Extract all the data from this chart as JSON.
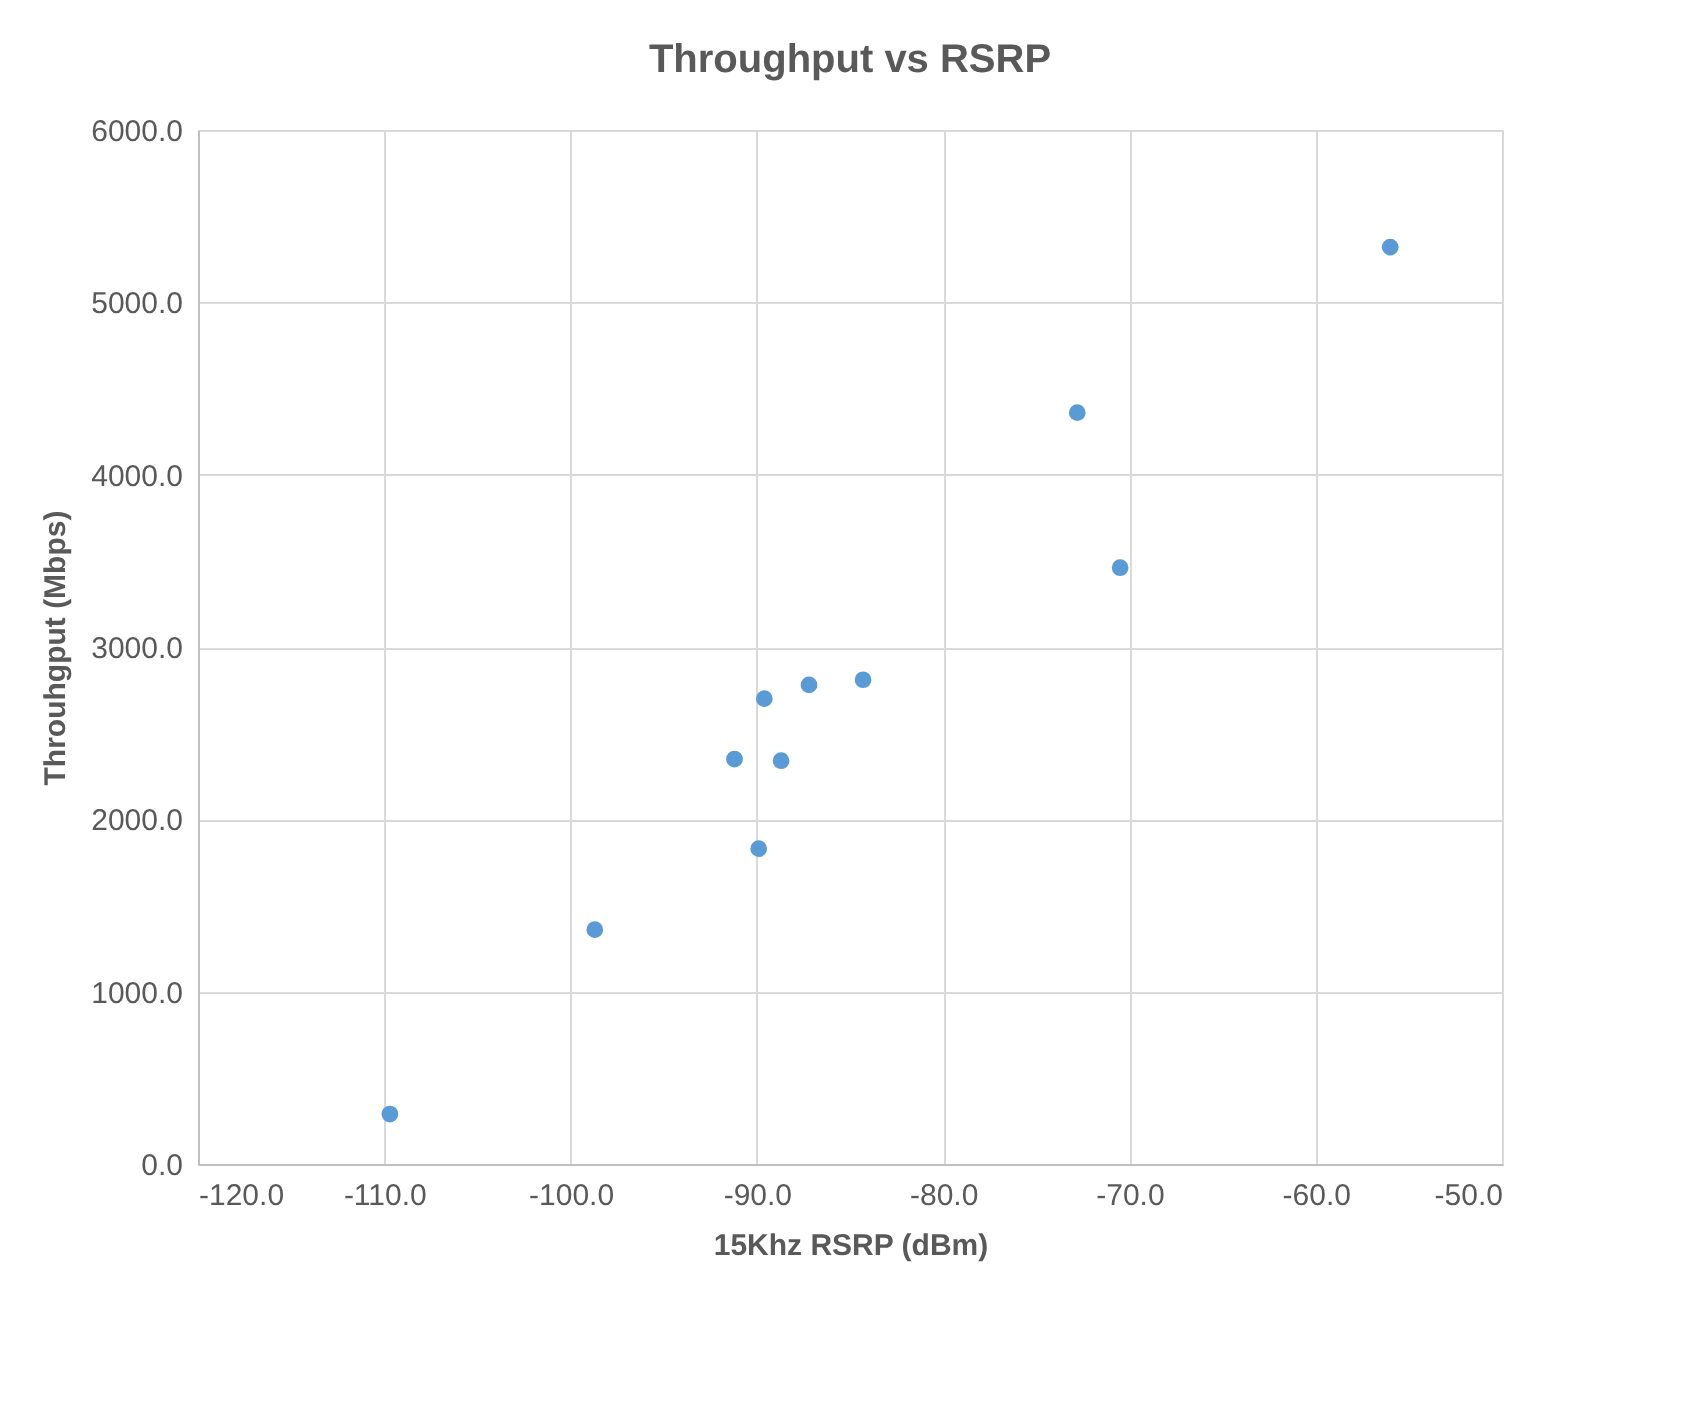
{
  "chart_data": {
    "type": "scatter",
    "title": "Throughput vs RSRP",
    "xlabel": "15Khz RSRP (dBm)",
    "ylabel": "Throuhgput (Mbps)",
    "x": [
      -109.7,
      -98.7,
      -89.9,
      -91.2,
      -88.7,
      -89.6,
      -87.2,
      -84.3,
      -72.8,
      -70.5,
      -56.0
    ],
    "series": [
      {
        "color": "#5b9bd5",
        "values": [
          290,
          1360,
          1830,
          2350,
          2340,
          2700,
          2780,
          2810,
          4360,
          3460,
          5320
        ]
      }
    ],
    "xlim": [
      -120,
      -50
    ],
    "xticks": [
      {
        "value": -120,
        "label": "-120.0"
      },
      {
        "value": -110,
        "label": "-110.0"
      },
      {
        "value": -100,
        "label": "-100.0"
      },
      {
        "value": -90,
        "label": "-90.0"
      },
      {
        "value": -80,
        "label": "-80.0"
      },
      {
        "value": -70,
        "label": "-70.0"
      },
      {
        "value": -60,
        "label": "-60.0"
      },
      {
        "value": -50,
        "label": "-50.0"
      }
    ],
    "ylim": [
      0,
      6000
    ],
    "yticks": [
      {
        "value": 0,
        "label": "0.0"
      },
      {
        "value": 1000,
        "label": "1000.0"
      },
      {
        "value": 2000,
        "label": "2000.0"
      },
      {
        "value": 3000,
        "label": "3000.0"
      },
      {
        "value": 4000,
        "label": "4000.0"
      },
      {
        "value": 5000,
        "label": "5000.0"
      },
      {
        "value": 6000,
        "label": "6000.0"
      }
    ],
    "grid": true,
    "marker": "circle",
    "legend": false
  }
}
